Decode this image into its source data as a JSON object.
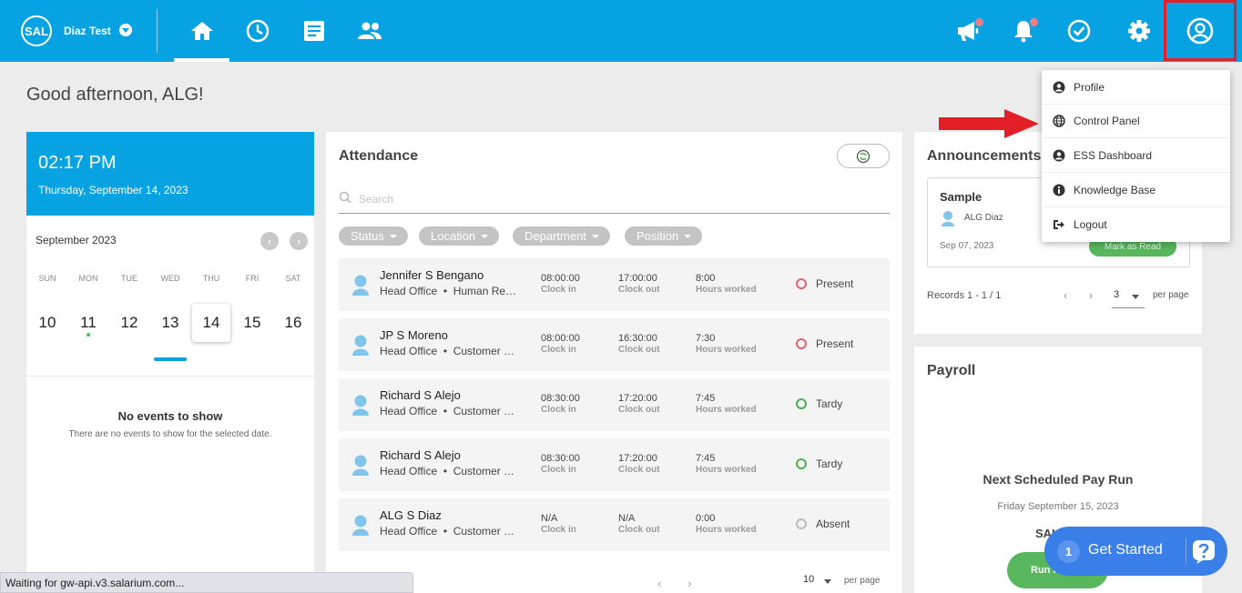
{
  "header": {
    "logo": "SAL",
    "company": "Diaz Test",
    "icons": [
      "home-icon",
      "clock-icon",
      "document-icon",
      "people-icon",
      "megaphone-icon",
      "bell-icon",
      "check-circle-icon",
      "gear-icon",
      "user-circle-icon"
    ],
    "accent": "#07a2e2"
  },
  "greeting": "Good afternoon, ALG!",
  "clock": {
    "time": "02:17 PM",
    "date": "Thursday, September 14, 2023"
  },
  "calendar": {
    "month": "September 2023",
    "prev": "‹",
    "next": "›",
    "days": [
      {
        "dow": "SUN",
        "num": "10"
      },
      {
        "dow": "MON",
        "num": "11"
      },
      {
        "dow": "TUE",
        "num": "12"
      },
      {
        "dow": "WED",
        "num": "13"
      },
      {
        "dow": "THU",
        "num": "14"
      },
      {
        "dow": "FRI",
        "num": "15"
      },
      {
        "dow": "SAT",
        "num": "16"
      }
    ],
    "no_events_title": "No events to show",
    "no_events_sub": "There are no events to show for the selected date."
  },
  "attendance": {
    "title": "Attendance",
    "search_placeholder": "Search",
    "filters": [
      "Status",
      "Location",
      "Department",
      "Position"
    ],
    "labels": {
      "clock_in": "Clock in",
      "clock_out": "Clock out",
      "hours": "Hours worked"
    },
    "rows": [
      {
        "name": "Jennifer S Bengano",
        "location": "Head Office",
        "dept": "Human Re…",
        "in": "08:00:00",
        "out": "17:00:00",
        "hours": "8:00",
        "status": "Present",
        "color": "#e8606c"
      },
      {
        "name": "JP S Moreno",
        "location": "Head Office",
        "dept": "Customer …",
        "in": "08:00:00",
        "out": "16:30:00",
        "hours": "7:30",
        "status": "Present",
        "color": "#e8606c"
      },
      {
        "name": "Richard S Alejo",
        "location": "Head Office",
        "dept": "Customer …",
        "in": "08:30:00",
        "out": "17:20:00",
        "hours": "7:45",
        "status": "Tardy",
        "color": "#4cb14f"
      },
      {
        "name": "Richard S Alejo",
        "location": "Head Office",
        "dept": "Customer …",
        "in": "08:30:00",
        "out": "17:20:00",
        "hours": "7:45",
        "status": "Tardy",
        "color": "#4cb14f"
      },
      {
        "name": "ALG S Diaz",
        "location": "Head Office",
        "dept": "Customer …",
        "in": "N/A",
        "out": "N/A",
        "hours": "0:00",
        "status": "Absent",
        "color": "#bbbbbb"
      }
    ],
    "pager": {
      "prev": "‹",
      "next": "›",
      "per_page": "10",
      "per_page_label": "per page"
    }
  },
  "announcements": {
    "title": "Announcements",
    "item": {
      "title": "Sample",
      "author": "ALG Diaz",
      "date": "Sep 07, 2023",
      "button": "Mark as Read"
    },
    "records": "Records 1 - 1 / 1",
    "prev": "‹",
    "next": "›",
    "per_page": "3",
    "per_page_label": "per page"
  },
  "payroll": {
    "title": "Payroll",
    "next_label": "Next Scheduled Pay Run",
    "next_date": "Friday September 15, 2023",
    "cutoff": "SAL",
    "run_button": "Run P"
  },
  "menu": {
    "items": [
      "Profile",
      "Control Panel",
      "ESS Dashboard",
      "Knowledge Base",
      "Logout"
    ]
  },
  "get_started": {
    "count": "1",
    "label": "Get Started"
  },
  "status_bar": "Waiting for gw-api.v3.salarium.com..."
}
